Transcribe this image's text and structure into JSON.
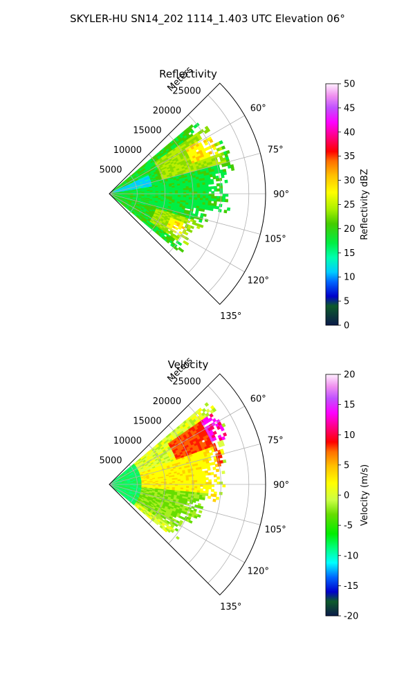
{
  "figure": {
    "title": "SKYLER-HU  SN14_202  1114_1.403 UTC Elevation 06°"
  },
  "chart_data": [
    {
      "type": "heatmap",
      "projection": "polar-sector",
      "title": "Reflectivity",
      "radial_label": "Meters",
      "radial_ticks": [
        "5000",
        "10000",
        "15000",
        "20000",
        "25000"
      ],
      "radial_values": [
        5000,
        10000,
        15000,
        20000,
        25000
      ],
      "rlim": [
        0,
        28000
      ],
      "angle_ticks": [
        "60°",
        "75°",
        "90°",
        "105°",
        "120°",
        "135°"
      ],
      "angle_values": [
        60,
        75,
        90,
        105,
        120,
        135
      ],
      "theta_range_deg": [
        45,
        135
      ],
      "grid": true,
      "colorbar": {
        "label": "Reflectivity dBZ",
        "ticks": [
          "0",
          "5",
          "10",
          "15",
          "20",
          "25",
          "30",
          "35",
          "40",
          "45",
          "50"
        ],
        "range": [
          0,
          50
        ]
      },
      "regions": [
        {
          "theta_range": [
            55,
            75
          ],
          "r_range": [
            10000,
            22000
          ],
          "level": 24
        },
        {
          "theta_range": [
            60,
            70
          ],
          "r_range": [
            16000,
            21000
          ],
          "level": 30
        },
        {
          "theta_range": [
            75,
            105
          ],
          "r_range": [
            1000,
            22000
          ],
          "level": 19
        },
        {
          "theta_range": [
            108,
            125
          ],
          "r_range": [
            9000,
            18000
          ],
          "level": 24
        },
        {
          "theta_range": [
            112,
            120
          ],
          "r_range": [
            12000,
            15000
          ],
          "level": 30
        },
        {
          "theta_range": [
            65,
            80
          ],
          "r_range": [
            1000,
            8000
          ],
          "level": 13
        }
      ]
    },
    {
      "type": "heatmap",
      "projection": "polar-sector",
      "title": "Velocity",
      "radial_label": "Meters",
      "radial_ticks": [
        "5000",
        "10000",
        "15000",
        "20000",
        "25000"
      ],
      "radial_values": [
        5000,
        10000,
        15000,
        20000,
        25000
      ],
      "rlim": [
        0,
        28000
      ],
      "angle_ticks": [
        "60°",
        "75°",
        "90°",
        "105°",
        "120°",
        "135°"
      ],
      "angle_values": [
        60,
        75,
        90,
        105,
        120,
        135
      ],
      "theta_range_deg": [
        45,
        135
      ],
      "grid": true,
      "colorbar": {
        "label": "Velocity (m/s)",
        "ticks": [
          "-20",
          "-15",
          "-10",
          "-5",
          "0",
          "5",
          "10",
          "15",
          "20"
        ],
        "range": [
          -20,
          20
        ]
      },
      "regions": [
        {
          "theta_range": [
            55,
            80
          ],
          "r_range": [
            13000,
            21000
          ],
          "level": 10
        },
        {
          "theta_range": [
            55,
            68
          ],
          "r_range": [
            20000,
            23000
          ],
          "level": 16
        },
        {
          "theta_range": [
            70,
            100
          ],
          "r_range": [
            6000,
            20000
          ],
          "level": 3
        },
        {
          "theta_range": [
            95,
            125
          ],
          "r_range": [
            6000,
            18000
          ],
          "level": -3
        },
        {
          "theta_range": [
            50,
            130
          ],
          "r_range": [
            0,
            6000
          ],
          "level": -8
        }
      ]
    }
  ]
}
